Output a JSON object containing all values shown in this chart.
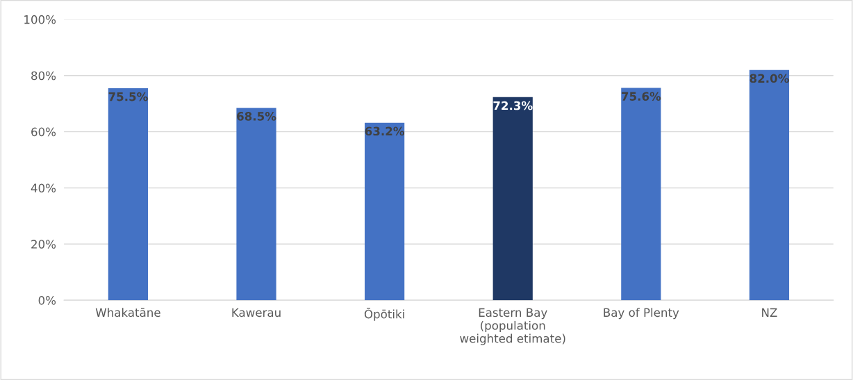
{
  "chart_data": {
    "type": "bar",
    "categories": [
      "Whakatāne",
      "Kawerau",
      "Ōpōtiki",
      "Eastern Bay\n(population\nweighted etimate)",
      "Bay of Plenty",
      "NZ"
    ],
    "values": [
      75.5,
      68.5,
      63.2,
      72.3,
      75.6,
      82.0
    ],
    "colors": [
      "#4472c4",
      "#4472c4",
      "#4472c4",
      "#1f3864",
      "#4472c4",
      "#4472c4"
    ],
    "value_labels": [
      "75.5%",
      "68.5%",
      "63.2%",
      "72.3%",
      "75.6%",
      "82.0%"
    ],
    "ylim": [
      0,
      100
    ],
    "yticks": [
      {
        "value": 0,
        "label": "0%"
      },
      {
        "value": 20,
        "label": "20%"
      },
      {
        "value": 40,
        "label": "40%"
      },
      {
        "value": 60,
        "label": "60%"
      },
      {
        "value": 80,
        "label": "80%"
      },
      {
        "value": 100,
        "label": "100%"
      }
    ],
    "grid": "y",
    "legend": false
  }
}
